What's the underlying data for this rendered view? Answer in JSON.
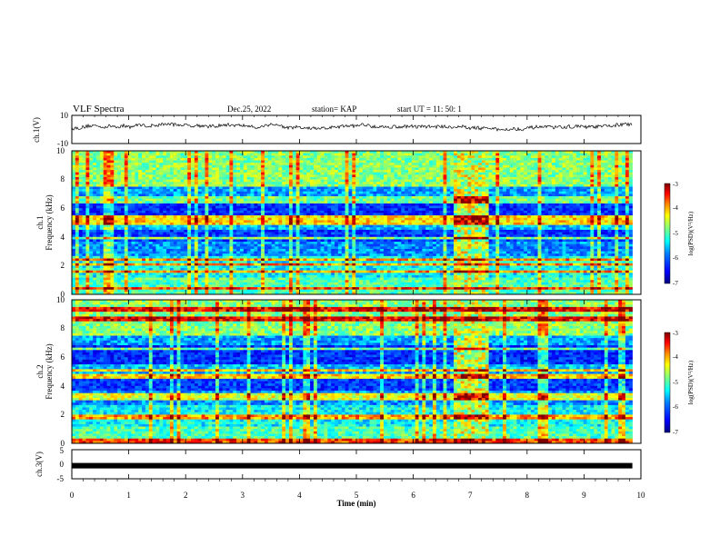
{
  "header": {
    "title": "VLF Spectra",
    "date": "Dec.25, 2022",
    "station": "station= KAP",
    "start": "start  UT =   11: 50: 1"
  },
  "chart_data": [
    {
      "type": "line",
      "panel": "ch1-waveform",
      "ylabel": "ch.1(V)",
      "ylim": [
        -10,
        10
      ],
      "yticks": [
        "10",
        "-10"
      ],
      "xlim": [
        0,
        10
      ],
      "note": "noisy waveform around -2 V to 3 V"
    },
    {
      "type": "heatmap",
      "panel": "ch1-spectrogram",
      "ylabel": "ch.1\nFrequency (kHz)",
      "ylim": [
        0,
        10
      ],
      "yticks": [
        "0",
        "2",
        "4",
        "6",
        "8",
        "10"
      ],
      "xlim": [
        0,
        10
      ],
      "colorbar": {
        "label": "log(PSD)(V²/Hz)",
        "ticks": [
          "-3",
          "-4",
          "-5",
          "-6",
          "-7"
        ],
        "range": [
          -7,
          -3
        ]
      },
      "disturbance_interval_min": [
        6.7,
        7.3
      ],
      "horizontal_lines_khz": [
        0.4,
        1.6,
        2.1,
        2.4,
        3.9,
        5.0,
        5.3,
        6.5,
        6.7
      ]
    },
    {
      "type": "heatmap",
      "panel": "ch2-spectrogram",
      "ylabel": "ch.2\nFrequency (kHz)",
      "ylim": [
        0,
        10
      ],
      "yticks": [
        "0",
        "2",
        "4",
        "6",
        "8",
        "10"
      ],
      "xlim": [
        0,
        10
      ],
      "colorbar": {
        "label": "log(PSD)(V²/Hz)",
        "ticks": [
          "-3",
          "-4",
          "-5",
          "-6",
          "-7"
        ],
        "range": [
          -7,
          -3
        ]
      },
      "disturbance_interval_min": [
        6.7,
        7.3
      ],
      "horizontal_lines_khz": [
        0.2,
        1.8,
        3.2,
        3.4,
        4.7,
        5.1,
        6.6,
        8.7,
        9.3
      ]
    },
    {
      "type": "line",
      "panel": "ch3-waveform",
      "ylabel": "ch.3(V)",
      "ylim": [
        -5,
        5
      ],
      "yticks": [
        "5",
        "0",
        "-5"
      ],
      "xlim": [
        0,
        10
      ],
      "values_level_V": -0.5
    }
  ],
  "xaxis": {
    "label": "Time (min)",
    "ticks": [
      "0",
      "1",
      "2",
      "3",
      "4",
      "5",
      "6",
      "7",
      "8",
      "9",
      "10"
    ]
  },
  "colors": {
    "colormap": [
      "#00007f",
      "#0000ff",
      "#007fff",
      "#00ffff",
      "#7fff7f",
      "#ffff00",
      "#ff7f00",
      "#ff0000",
      "#7f0000"
    ]
  }
}
